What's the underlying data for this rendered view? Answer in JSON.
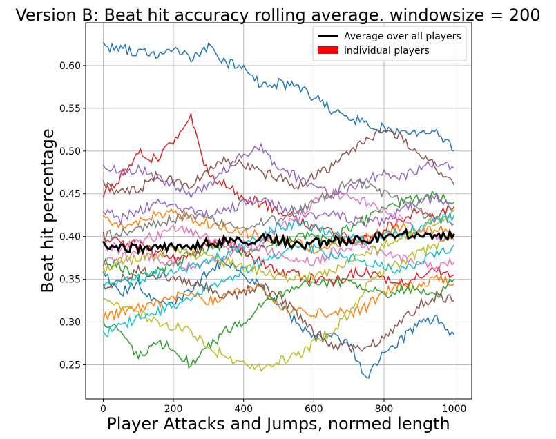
{
  "chart_data": {
    "type": "line",
    "title": "Version B: Beat hit accuracy rolling average. windowsize = 200",
    "xlabel": "Player Attacks and Jumps, normed length",
    "ylabel": "Beat hit percentage",
    "xlim": [
      -50,
      1050
    ],
    "ylim": [
      0.21,
      0.65
    ],
    "xticks": [
      0,
      200,
      400,
      600,
      800,
      1000
    ],
    "yticks": [
      0.25,
      0.3,
      0.35,
      0.4,
      0.45,
      0.5,
      0.55,
      0.6
    ],
    "ytick_labels": [
      "0.25",
      "0.30",
      "0.35",
      "0.40",
      "0.45",
      "0.50",
      "0.55",
      "0.60"
    ],
    "grid": true,
    "legend": {
      "placement": "top-right",
      "entries": [
        {
          "label": "Average over all players",
          "color": "#000000",
          "kind": "line"
        },
        {
          "label": "individual players",
          "color": "#ff0000",
          "kind": "patch"
        }
      ]
    },
    "average": {
      "color": "#000000",
      "x": [
        0,
        50,
        100,
        150,
        200,
        250,
        300,
        350,
        400,
        450,
        500,
        550,
        600,
        650,
        700,
        750,
        800,
        850,
        900,
        950,
        1000
      ],
      "values": [
        0.392,
        0.388,
        0.385,
        0.384,
        0.389,
        0.39,
        0.392,
        0.394,
        0.396,
        0.397,
        0.396,
        0.39,
        0.393,
        0.394,
        0.395,
        0.396,
        0.399,
        0.402,
        0.405,
        0.401,
        0.403
      ]
    },
    "series": [
      {
        "color": "#1f77b4",
        "values": [
          0.622,
          0.62,
          0.616,
          0.612,
          0.623,
          0.607,
          0.621,
          0.603,
          0.6,
          0.575,
          0.579,
          0.575,
          0.563,
          0.548,
          0.54,
          0.532,
          0.526,
          0.525,
          0.521,
          0.522,
          0.5
        ]
      },
      {
        "color": "#1f77b4",
        "values": [
          0.355,
          0.335,
          0.344,
          0.325,
          0.322,
          0.335,
          0.36,
          0.372,
          0.355,
          0.34,
          0.322,
          0.3,
          0.282,
          0.285,
          0.275,
          0.235,
          0.262,
          0.28,
          0.3,
          0.303,
          0.285
        ]
      },
      {
        "color": "#ff7f0e",
        "values": [
          0.305,
          0.31,
          0.316,
          0.32,
          0.33,
          0.333,
          0.325,
          0.33,
          0.34,
          0.34,
          0.318,
          0.315,
          0.31,
          0.312,
          0.31,
          0.318,
          0.335,
          0.344,
          0.34,
          0.35,
          0.345
        ]
      },
      {
        "color": "#ff7f0e",
        "values": [
          0.42,
          0.415,
          0.418,
          0.425,
          0.43,
          0.42,
          0.415,
          0.41,
          0.405,
          0.4,
          0.395,
          0.392,
          0.385,
          0.39,
          0.395,
          0.4,
          0.405,
          0.41,
          0.405,
          0.41,
          0.4
        ]
      },
      {
        "color": "#2ca02c",
        "values": [
          0.3,
          0.29,
          0.26,
          0.275,
          0.27,
          0.25,
          0.27,
          0.29,
          0.3,
          0.32,
          0.33,
          0.34,
          0.35,
          0.345,
          0.35,
          0.34,
          0.33,
          0.34,
          0.335,
          0.33,
          0.35
        ]
      },
      {
        "color": "#2ca02c",
        "values": [
          0.37,
          0.365,
          0.355,
          0.36,
          0.365,
          0.38,
          0.385,
          0.39,
          0.38,
          0.385,
          0.395,
          0.4,
          0.4,
          0.395,
          0.41,
          0.42,
          0.43,
          0.44,
          0.445,
          0.45,
          0.44
        ]
      },
      {
        "color": "#d62728",
        "values": [
          0.45,
          0.47,
          0.5,
          0.49,
          0.51,
          0.54,
          0.47,
          0.46,
          0.445,
          0.44,
          0.43,
          0.42,
          0.41,
          0.405,
          0.4,
          0.395,
          0.41,
          0.42,
          0.43,
          0.425,
          0.435
        ]
      },
      {
        "color": "#d62728",
        "values": [
          0.4,
          0.395,
          0.39,
          0.38,
          0.375,
          0.38,
          0.39,
          0.395,
          0.38,
          0.37,
          0.36,
          0.355,
          0.35,
          0.345,
          0.355,
          0.36,
          0.35,
          0.345,
          0.355,
          0.36,
          0.355
        ]
      },
      {
        "color": "#9467bd",
        "values": [
          0.485,
          0.475,
          0.48,
          0.47,
          0.46,
          0.45,
          0.46,
          0.48,
          0.495,
          0.505,
          0.48,
          0.47,
          0.46,
          0.45,
          0.455,
          0.465,
          0.475,
          0.47,
          0.48,
          0.485,
          0.48
        ]
      },
      {
        "color": "#9467bd",
        "values": [
          0.43,
          0.42,
          0.43,
          0.44,
          0.435,
          0.43,
          0.425,
          0.43,
          0.44,
          0.445,
          0.435,
          0.43,
          0.425,
          0.43,
          0.42,
          0.415,
          0.42,
          0.43,
          0.44,
          0.445,
          0.43
        ]
      },
      {
        "color": "#8c564b",
        "values": [
          0.46,
          0.45,
          0.455,
          0.47,
          0.465,
          0.46,
          0.48,
          0.49,
          0.485,
          0.475,
          0.47,
          0.46,
          0.47,
          0.48,
          0.5,
          0.51,
          0.525,
          0.515,
          0.5,
          0.48,
          0.46
        ]
      },
      {
        "color": "#8c564b",
        "values": [
          0.34,
          0.35,
          0.36,
          0.355,
          0.35,
          0.345,
          0.34,
          0.33,
          0.335,
          0.345,
          0.33,
          0.31,
          0.29,
          0.275,
          0.27,
          0.27,
          0.28,
          0.3,
          0.32,
          0.33,
          0.325
        ]
      },
      {
        "color": "#e377c2",
        "values": [
          0.39,
          0.385,
          0.395,
          0.4,
          0.41,
          0.405,
          0.4,
          0.39,
          0.385,
          0.395,
          0.41,
          0.42,
          0.44,
          0.45,
          0.445,
          0.44,
          0.43,
          0.42,
          0.41,
          0.4,
          0.395
        ]
      },
      {
        "color": "#e377c2",
        "values": [
          0.37,
          0.375,
          0.38,
          0.375,
          0.37,
          0.365,
          0.37,
          0.38,
          0.39,
          0.385,
          0.38,
          0.375,
          0.37,
          0.38,
          0.39,
          0.385,
          0.38,
          0.375,
          0.37,
          0.365,
          0.37
        ]
      },
      {
        "color": "#7f7f7f",
        "values": [
          0.4,
          0.405,
          0.41,
          0.415,
          0.42,
          0.425,
          0.42,
          0.415,
          0.41,
          0.415,
          0.42,
          0.43,
          0.44,
          0.45,
          0.465,
          0.46,
          0.45,
          0.44,
          0.43,
          0.42,
          0.415
        ]
      },
      {
        "color": "#bcbd22",
        "values": [
          0.33,
          0.32,
          0.31,
          0.3,
          0.295,
          0.29,
          0.27,
          0.26,
          0.25,
          0.245,
          0.255,
          0.26,
          0.275,
          0.29,
          0.31,
          0.34,
          0.36,
          0.37,
          0.38,
          0.39,
          0.4
        ]
      },
      {
        "color": "#bcbd22",
        "values": [
          0.36,
          0.37,
          0.375,
          0.38,
          0.385,
          0.38,
          0.375,
          0.37,
          0.365,
          0.36,
          0.355,
          0.35,
          0.355,
          0.36,
          0.37,
          0.38,
          0.39,
          0.4,
          0.41,
          0.42,
          0.43
        ]
      },
      {
        "color": "#17becf",
        "values": [
          0.285,
          0.295,
          0.305,
          0.31,
          0.32,
          0.33,
          0.34,
          0.35,
          0.36,
          0.37,
          0.38,
          0.39,
          0.385,
          0.38,
          0.375,
          0.37,
          0.365,
          0.36,
          0.37,
          0.38,
          0.39
        ]
      },
      {
        "color": "#17becf",
        "values": [
          0.34,
          0.345,
          0.35,
          0.355,
          0.36,
          0.365,
          0.37,
          0.38,
          0.39,
          0.4,
          0.41,
          0.415,
          0.41,
          0.405,
          0.4,
          0.395,
          0.4,
          0.405,
          0.41,
          0.42,
          0.425
        ]
      }
    ]
  }
}
